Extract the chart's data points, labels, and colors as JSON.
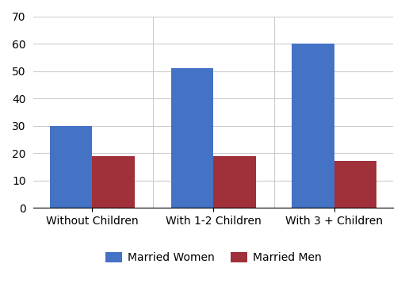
{
  "categories": [
    "Without Children",
    "With 1-2 Children",
    "With 3 + Children"
  ],
  "married_women": [
    30,
    51,
    60
  ],
  "married_men": [
    19,
    19,
    17
  ],
  "bar_color_women": "#4472C4",
  "bar_color_men": "#A0303A",
  "ylim": [
    0,
    70
  ],
  "yticks": [
    0,
    10,
    20,
    30,
    40,
    50,
    60,
    70
  ],
  "legend_labels": [
    "Married Women",
    "Married Men"
  ],
  "background_color": "#ffffff",
  "grid_color": "#cccccc",
  "bar_width": 0.35
}
